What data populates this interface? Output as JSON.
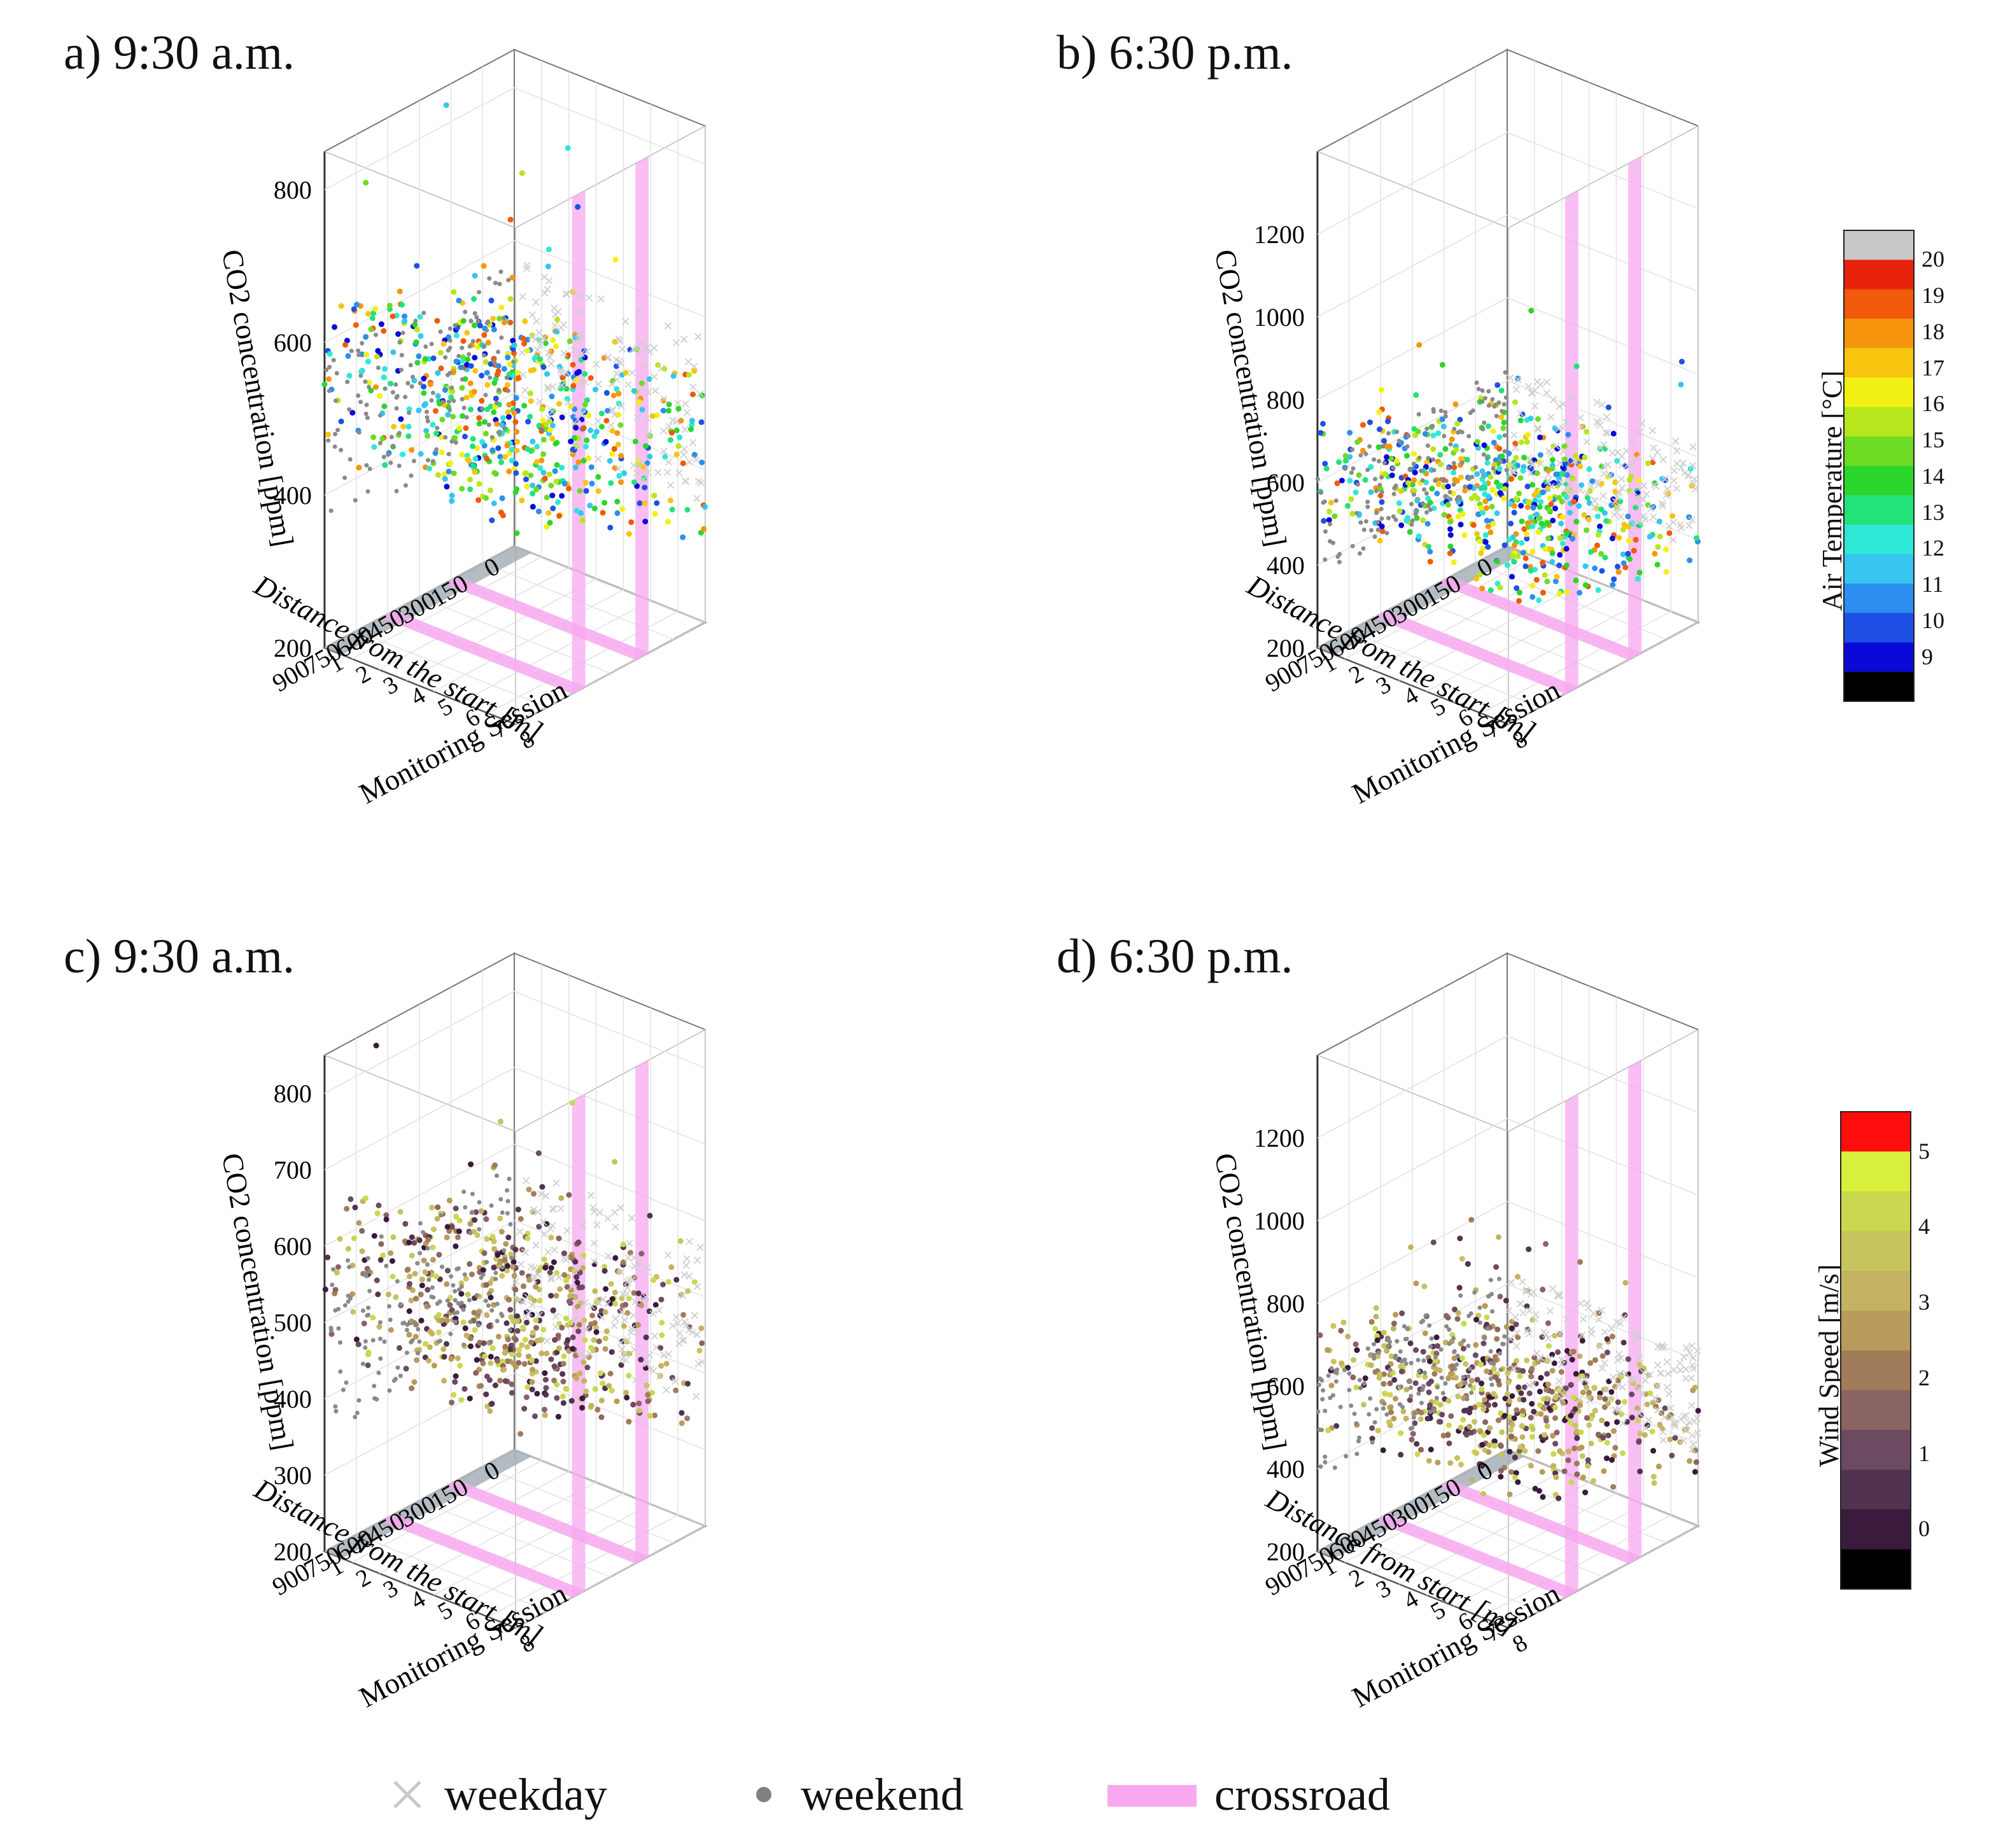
{
  "panels": [
    {
      "id": "a",
      "title": "a) 9:30 a.m.",
      "zlabel": "CO2 concentration [ppm]",
      "zticks": [
        "200",
        "400",
        "600",
        "800"
      ],
      "zmin": 200,
      "zmax": 850,
      "xlabel": "Distance from the start [m]",
      "xticks": [
        "0",
        "150",
        "300",
        "450",
        "600",
        "750",
        "900"
      ],
      "ylabel": "Monitoring Session",
      "yticks": [
        "1",
        "2",
        "3",
        "4",
        "5",
        "6",
        "7",
        "8"
      ],
      "colorvar": "temp",
      "base": 420,
      "spread": 1.0
    },
    {
      "id": "b",
      "title": "b) 6:30 p.m.",
      "zlabel": "CO2 concentration [ppm]",
      "zticks": [
        "200",
        "400",
        "600",
        "800",
        "1000",
        "1200"
      ],
      "zmin": 200,
      "zmax": 1400,
      "xlabel": "Distance from the start [m]",
      "xticks": [
        "0",
        "150",
        "300",
        "450",
        "600",
        "750",
        "900"
      ],
      "ylabel": "Monitoring Session",
      "yticks": [
        "1",
        "2",
        "3",
        "4",
        "5",
        "6",
        "7",
        "8"
      ],
      "colorvar": "temp",
      "base": 450,
      "spread": 1.2
    },
    {
      "id": "c",
      "title": "c) 9:30 a.m.",
      "zlabel": "CO2 concentration [ppm]",
      "zticks": [
        "200",
        "300",
        "400",
        "500",
        "600",
        "700",
        "800"
      ],
      "zmin": 200,
      "zmax": 850,
      "xlabel": "Distance from the start [m]",
      "xticks": [
        "0",
        "150",
        "300",
        "450",
        "600",
        "750",
        "900"
      ],
      "ylabel": "Monitoring Session",
      "yticks": [
        "1",
        "2",
        "3",
        "4",
        "5",
        "6",
        "7",
        "8"
      ],
      "colorvar": "wind",
      "base": 420,
      "spread": 1.0
    },
    {
      "id": "d",
      "title": "d) 6:30 p.m.",
      "zlabel": "CO2 concentration [ppm]",
      "zticks": [
        "200",
        "400",
        "600",
        "800",
        "1000",
        "1200"
      ],
      "zmin": 200,
      "zmax": 1400,
      "xlabel": "Distance from start [m]",
      "xticks": [
        "0",
        "150",
        "300",
        "450",
        "600",
        "750",
        "900"
      ],
      "ylabel": "Monitoring Session",
      "yticks": [
        "1",
        "2",
        "3",
        "4",
        "5",
        "6",
        "7",
        "8"
      ],
      "colorvar": "wind",
      "base": 450,
      "spread": 1.2
    }
  ],
  "temperature_scale": {
    "title": "Air Temperature [°C]",
    "ticks": [
      "9",
      "10",
      "11",
      "12",
      "13",
      "14",
      "15",
      "16",
      "17",
      "18",
      "19",
      "20"
    ],
    "colors": [
      "#000000",
      "#0a0ad8",
      "#1e50e6",
      "#2c8ef0",
      "#35c5ef",
      "#2ee8d6",
      "#22e27a",
      "#2bd62c",
      "#6ddc22",
      "#b8e61c",
      "#f2f012",
      "#f7c40e",
      "#f6950c",
      "#f05a0a",
      "#e8220a",
      "#c8c8c8"
    ]
  },
  "wind_scale": {
    "title": "Wind Speed [m/s]",
    "ticks": [
      "0",
      "1",
      "2",
      "3",
      "4",
      "5"
    ],
    "colors": [
      "#000000",
      "#3a1a3d",
      "#52334f",
      "#6b4a62",
      "#8a6462",
      "#a17c5a",
      "#b89a5c",
      "#c3b261",
      "#c6c45e",
      "#c9d84e",
      "#d8f03c",
      "#ff0d0d"
    ]
  },
  "legend": [
    {
      "label": "weekday",
      "marker": "x",
      "color": "#c8c8c8"
    },
    {
      "label": "weekend",
      "marker": "dot",
      "color": "#808080"
    },
    {
      "label": "crossroad",
      "marker": "band",
      "color": "#f7a8f0"
    }
  ],
  "chart_data": [
    {
      "type": "scatter3d",
      "panel": "a",
      "title": "a) 9:30 a.m.",
      "zlabel": "CO2 concentration [ppm]",
      "zlim": [
        200,
        850
      ],
      "xlabel": "Distance from the start [m]",
      "xlim": [
        0,
        900
      ],
      "ylabel": "Monitoring Session",
      "ylim": [
        1,
        8
      ],
      "color_variable": "Air Temperature [°C]",
      "color_range": [
        9,
        20
      ],
      "series": [
        {
          "name": "weekday",
          "marker": "x"
        },
        {
          "name": "weekend",
          "marker": "dot"
        }
      ],
      "crossroads_distance_m": [
        300,
        600
      ],
      "approx_level_ppm": 420
    },
    {
      "type": "scatter3d",
      "panel": "b",
      "title": "b) 6:30 p.m.",
      "zlabel": "CO2 concentration [ppm]",
      "zlim": [
        200,
        1400
      ],
      "xlabel": "Distance from the start [m]",
      "xlim": [
        0,
        900
      ],
      "ylabel": "Monitoring Session",
      "ylim": [
        1,
        8
      ],
      "color_variable": "Air Temperature [°C]",
      "color_range": [
        9,
        20
      ],
      "series": [
        {
          "name": "weekday",
          "marker": "x"
        },
        {
          "name": "weekend",
          "marker": "dot"
        }
      ],
      "crossroads_distance_m": [
        300,
        600
      ],
      "approx_level_ppm": 450
    },
    {
      "type": "scatter3d",
      "panel": "c",
      "title": "c) 9:30 a.m.",
      "zlabel": "CO2 concentration [ppm]",
      "zlim": [
        200,
        850
      ],
      "xlabel": "Distance from the start [m]",
      "xlim": [
        0,
        900
      ],
      "ylabel": "Monitoring Session",
      "ylim": [
        1,
        8
      ],
      "color_variable": "Wind Speed [m/s]",
      "color_range": [
        0,
        5
      ],
      "series": [
        {
          "name": "weekday",
          "marker": "x"
        },
        {
          "name": "weekend",
          "marker": "dot"
        }
      ],
      "crossroads_distance_m": [
        300,
        600
      ],
      "approx_level_ppm": 420
    },
    {
      "type": "scatter3d",
      "panel": "d",
      "title": "d) 6:30 p.m.",
      "zlabel": "CO2 concentration [ppm]",
      "zlim": [
        200,
        1400
      ],
      "xlabel": "Distance from start [m]",
      "xlim": [
        0,
        900
      ],
      "ylabel": "Monitoring Session",
      "ylim": [
        1,
        8
      ],
      "color_variable": "Wind Speed [m/s]",
      "color_range": [
        0,
        5
      ],
      "series": [
        {
          "name": "weekday",
          "marker": "x"
        },
        {
          "name": "weekend",
          "marker": "dot"
        }
      ],
      "crossroads_distance_m": [
        300,
        600
      ],
      "approx_level_ppm": 450
    }
  ]
}
